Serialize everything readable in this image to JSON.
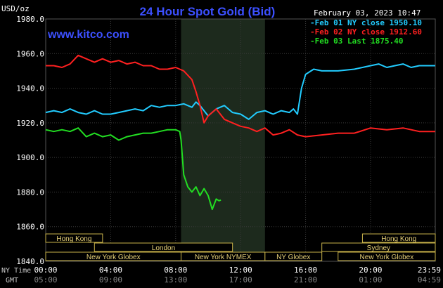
{
  "chart_data": {
    "type": "line",
    "title": "24 Hour Spot Gold (Bid)",
    "watermark": "www.kitco.com",
    "timestamp": "February 03, 2023 10:47",
    "y_unit": "USD/oz",
    "ylim": [
      1840,
      1980
    ],
    "y_ticks": [
      "1980.0",
      "1960.0",
      "1940.0",
      "1920.0",
      "1900.0",
      "1880.0",
      "1860.0",
      "1840.0"
    ],
    "x_ticks_ny": [
      "00:00",
      "04:00",
      "08:00",
      "12:00",
      "16:00",
      "20:00",
      "23:59"
    ],
    "x_ticks_gmt": [
      "05:00",
      "09:00",
      "13:00",
      "17:00",
      "21:00",
      "01:00",
      "04:59"
    ],
    "x_row_labels": {
      "ny": "NY Time",
      "gmt": "GMT"
    },
    "grid": true,
    "legend_placement": "top-right",
    "market_hours_shaded": [
      "08:20",
      "13:30"
    ],
    "series": [
      {
        "name": "Feb 01 NY close 1950.10",
        "color": "#22ccff",
        "x": [
          "00:00",
          "00:30",
          "01:00",
          "01:30",
          "02:00",
          "02:30",
          "03:00",
          "03:30",
          "04:00",
          "04:30",
          "05:00",
          "05:30",
          "06:00",
          "06:30",
          "07:00",
          "07:30",
          "08:00",
          "08:30",
          "09:00",
          "09:15",
          "09:30",
          "09:45",
          "10:00",
          "10:30",
          "11:00",
          "11:30",
          "12:00",
          "12:30",
          "13:00",
          "13:30",
          "14:00",
          "14:30",
          "15:00",
          "15:15",
          "15:30",
          "15:45",
          "16:00",
          "16:30",
          "17:00",
          "18:00",
          "19:00",
          "20:00",
          "20:30",
          "21:00",
          "21:30",
          "22:00",
          "22:30",
          "23:00",
          "23:59"
        ],
        "y": [
          1926,
          1927,
          1926,
          1928,
          1926,
          1925,
          1927,
          1925,
          1925,
          1926,
          1927,
          1928,
          1927,
          1930,
          1929,
          1930,
          1930,
          1931,
          1929,
          1932,
          1930,
          1927,
          1924,
          1928,
          1930,
          1926,
          1925,
          1922,
          1926,
          1927,
          1925,
          1927,
          1926,
          1928,
          1925,
          1940,
          1948,
          1951,
          1950,
          1950,
          1951,
          1953,
          1954,
          1952,
          1953,
          1954,
          1952,
          1953,
          1953
        ]
      },
      {
        "name": "Feb 02 NY close 1912.60",
        "color": "#ff2020",
        "x": [
          "00:00",
          "00:30",
          "01:00",
          "01:30",
          "02:00",
          "02:30",
          "03:00",
          "03:30",
          "04:00",
          "04:30",
          "05:00",
          "05:30",
          "06:00",
          "06:30",
          "07:00",
          "07:30",
          "08:00",
          "08:30",
          "09:00",
          "09:15",
          "09:30",
          "09:45",
          "10:00",
          "10:30",
          "11:00",
          "11:30",
          "12:00",
          "12:30",
          "13:00",
          "13:30",
          "14:00",
          "14:30",
          "15:00",
          "15:30",
          "16:00",
          "17:00",
          "18:00",
          "19:00",
          "20:00",
          "21:00",
          "22:00",
          "23:00",
          "23:59"
        ],
        "y": [
          1953,
          1953,
          1952,
          1954,
          1959,
          1957,
          1955,
          1957,
          1955,
          1956,
          1954,
          1955,
          1953,
          1953,
          1951,
          1951,
          1952,
          1950,
          1945,
          1938,
          1930,
          1920,
          1924,
          1928,
          1922,
          1920,
          1918,
          1917,
          1915,
          1917,
          1913,
          1914,
          1916,
          1913,
          1912,
          1913,
          1914,
          1914,
          1917,
          1916,
          1917,
          1915,
          1915
        ]
      },
      {
        "name": "Feb 03 Last 1875.40",
        "color": "#22dd22",
        "x": [
          "00:00",
          "00:30",
          "01:00",
          "01:30",
          "02:00",
          "02:30",
          "03:00",
          "03:30",
          "04:00",
          "04:30",
          "05:00",
          "05:30",
          "06:00",
          "06:30",
          "07:00",
          "07:30",
          "08:00",
          "08:15",
          "08:20",
          "08:30",
          "08:45",
          "09:00",
          "09:15",
          "09:30",
          "09:45",
          "10:00",
          "10:15",
          "10:30",
          "10:40",
          "10:47"
        ],
        "y": [
          1916,
          1915,
          1916,
          1915,
          1917,
          1912,
          1914,
          1912,
          1913,
          1910,
          1912,
          1913,
          1914,
          1914,
          1915,
          1916,
          1916,
          1915,
          1910,
          1890,
          1883,
          1880,
          1883,
          1878,
          1882,
          1878,
          1870,
          1876,
          1875,
          1875.4
        ]
      }
    ],
    "sessions": [
      {
        "label": "Hong Kong",
        "start": "00:00",
        "end": "03:30",
        "row": 0
      },
      {
        "label": "London",
        "start": "03:00",
        "end": "11:30",
        "row": 1
      },
      {
        "label": "New York Globex",
        "start": "00:00",
        "end": "08:20",
        "row": 2
      },
      {
        "label": "New York NYMEX",
        "start": "08:20",
        "end": "13:30",
        "row": 2
      },
      {
        "label": "NY Globex",
        "start": "13:30",
        "end": "17:00",
        "row": 2
      },
      {
        "label": "Sydney",
        "start": "17:00",
        "end": "23:59",
        "row": 1
      },
      {
        "label": "Hong Kong",
        "start": "19:30",
        "end": "23:59",
        "row": 0
      },
      {
        "label": "New York Globex",
        "start": "18:00",
        "end": "23:59",
        "row": 2
      }
    ]
  }
}
